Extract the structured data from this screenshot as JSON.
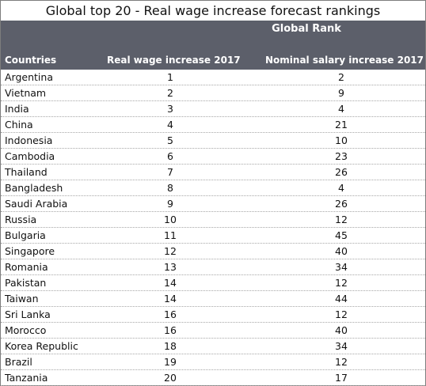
{
  "title": "Global top 20 - Real wage increase forecast rankings",
  "header": {
    "group_label": "Global Rank",
    "columns": [
      "Countries",
      "Real wage increase 2017",
      "Nominal salary increase 2017"
    ]
  },
  "colors": {
    "header_bg": "#5c5f6a",
    "header_text": "#ffffff",
    "divider": "#a7a7a7"
  },
  "chart_data": {
    "type": "table",
    "title": "Global top 20 - Real wage increase forecast rankings",
    "columns": [
      "Countries",
      "Real wage increase 2017",
      "Nominal salary increase 2017"
    ],
    "rows": [
      [
        "Argentina",
        1,
        2
      ],
      [
        "Vietnam",
        2,
        9
      ],
      [
        "India",
        3,
        4
      ],
      [
        "China",
        4,
        21
      ],
      [
        "Indonesia",
        5,
        10
      ],
      [
        "Cambodia",
        6,
        23
      ],
      [
        "Thailand",
        7,
        26
      ],
      [
        "Bangladesh",
        8,
        4
      ],
      [
        "Saudi Arabia",
        9,
        26
      ],
      [
        "Russia",
        10,
        12
      ],
      [
        "Bulgaria",
        11,
        45
      ],
      [
        "Singapore",
        12,
        40
      ],
      [
        "Romania",
        13,
        34
      ],
      [
        "Pakistan",
        14,
        12
      ],
      [
        "Taiwan",
        14,
        44
      ],
      [
        "Sri Lanka",
        16,
        12
      ],
      [
        "Morocco",
        16,
        40
      ],
      [
        "Korea Republic",
        18,
        34
      ],
      [
        "Brazil",
        19,
        12
      ],
      [
        "Tanzania",
        20,
        17
      ]
    ]
  }
}
